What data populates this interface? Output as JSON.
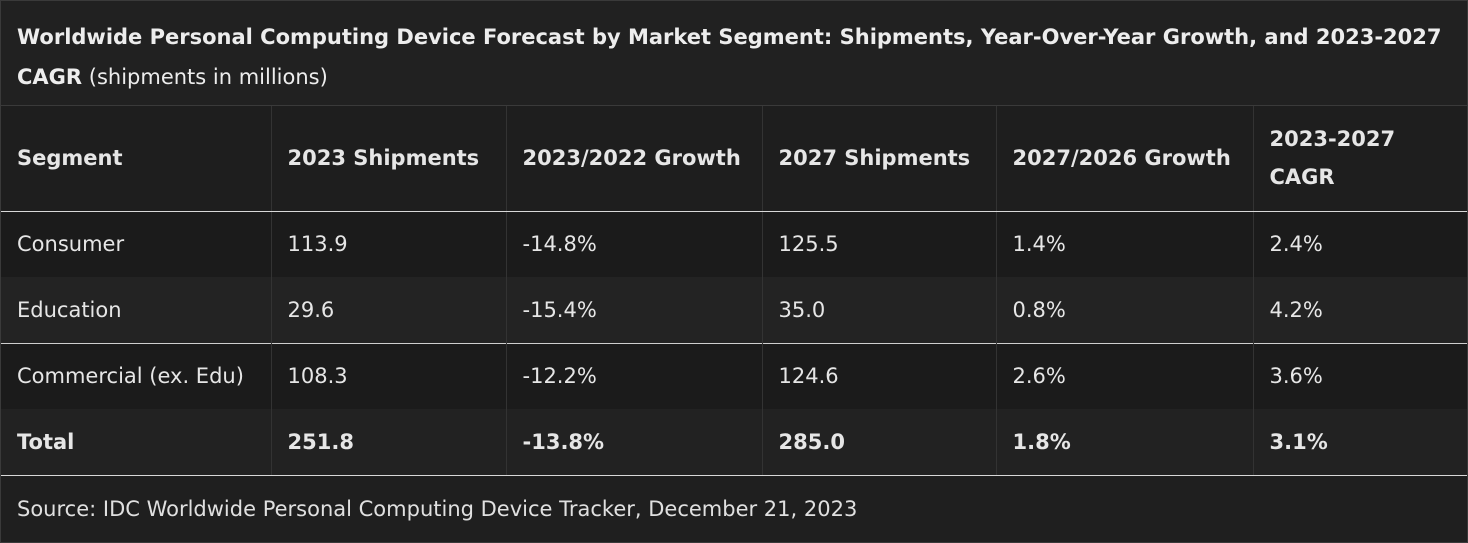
{
  "title": {
    "bold_text": "Worldwide Personal Computing Device Forecast by Market Segment: Shipments, Year-Over-Year Growth, and 2023-2027 CAGR",
    "normal_text": " (shipments in millions)"
  },
  "table": {
    "headers": [
      "Segment",
      "2023 Shipments",
      "2023/2022 Growth",
      "2027 Shipments",
      "2027/2026 Growth",
      "2023-2027 CAGR"
    ],
    "rows": [
      [
        "Consumer",
        "113.9",
        "-14.8%",
        "125.5",
        "1.4%",
        "2.4%"
      ],
      [
        "Education",
        "29.6",
        "-15.4%",
        "35.0",
        "0.8%",
        "4.2%"
      ],
      [
        "Commercial (ex. Edu)",
        "108.3",
        "-12.2%",
        "124.6",
        "2.6%",
        "3.6%"
      ],
      [
        "Total",
        "251.8",
        "-13.8%",
        "285.0",
        "1.8%",
        "3.1%"
      ]
    ]
  },
  "source": "Source: IDC Worldwide Personal Computing Device Tracker, December 21, 2023"
}
